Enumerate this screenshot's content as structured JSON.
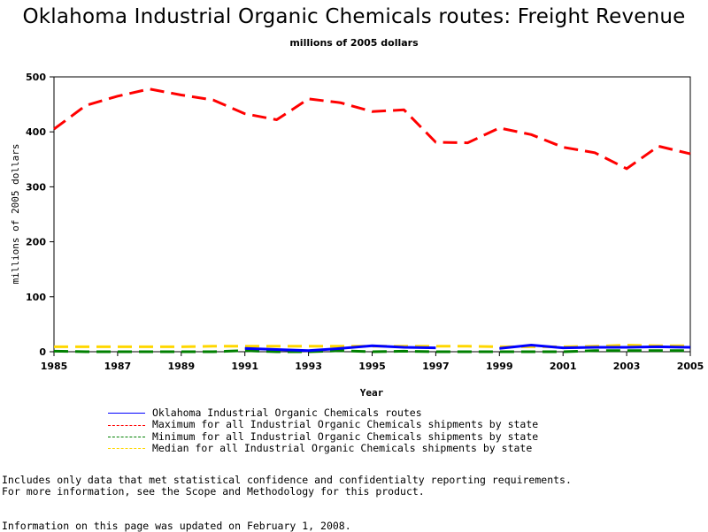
{
  "chart_data": {
    "type": "line",
    "title": "Oklahoma Industrial Organic Chemicals routes: Freight Revenue",
    "subtitle": "millions of 2005 dollars",
    "xlabel": "Year",
    "ylabel": "millions of 2005 dollars",
    "xlim": [
      1985,
      2005
    ],
    "ylim": [
      0,
      500
    ],
    "x_ticks": [
      "1985",
      "1987",
      "1989",
      "1991",
      "1993",
      "1995",
      "1997",
      "1999",
      "2001",
      "2003",
      "2005"
    ],
    "y_ticks": [
      "0",
      "100",
      "200",
      "300",
      "400",
      "500"
    ],
    "grid": false,
    "legend_position": "bottom",
    "series": [
      {
        "name": "Oklahoma Industrial Organic Chemicals routes",
        "color": "#0000ff",
        "dash": "solid",
        "x": [
          1991,
          1992,
          1993,
          1994,
          1995,
          1996,
          1997,
          1998,
          1999,
          2000,
          2001,
          2002,
          2003,
          2004,
          2005
        ],
        "y": [
          6,
          4,
          2,
          6,
          11,
          8,
          7,
          null,
          6,
          12,
          7,
          8,
          8,
          9,
          8
        ]
      },
      {
        "name": "Maximum for all Industrial Organic Chemicals shipments by state",
        "color": "#ff0000",
        "dash": "dashed",
        "x": [
          1985,
          1986,
          1987,
          1988,
          1989,
          1990,
          1991,
          1992,
          1993,
          1994,
          1995,
          1996,
          1997,
          1998,
          1999,
          2000,
          2001,
          2002,
          2003,
          2004,
          2005
        ],
        "y": [
          405,
          448,
          465,
          478,
          467,
          458,
          433,
          422,
          460,
          453,
          437,
          440,
          381,
          380,
          407,
          395,
          372,
          362,
          333,
          374,
          360
        ]
      },
      {
        "name": "Minimum for all Industrial Organic Chemicals shipments by state",
        "color": "#008000",
        "dash": "dashed",
        "x": [
          1985,
          1986,
          1987,
          1988,
          1989,
          1990,
          1991,
          1992,
          1993,
          1994,
          1995,
          1996,
          1997,
          1998,
          1999,
          2000,
          2001,
          2002,
          2003,
          2004,
          2005
        ],
        "y": [
          1,
          0,
          0,
          0,
          0,
          0,
          2,
          0,
          0,
          2,
          0,
          1,
          0,
          0,
          0,
          0,
          0,
          2,
          2,
          2,
          2
        ]
      },
      {
        "name": "Median for all Industrial Organic Chemicals shipments by state",
        "color": "#ffd700",
        "dash": "dashed",
        "x": [
          1985,
          1986,
          1987,
          1988,
          1989,
          1990,
          1991,
          1992,
          1993,
          1994,
          1995,
          1996,
          1997,
          1998,
          1999,
          2000,
          2001,
          2002,
          2003,
          2004,
          2005
        ],
        "y": [
          9,
          9,
          9,
          9,
          9,
          10,
          10,
          10,
          10,
          10,
          10,
          10,
          10,
          10,
          9,
          9,
          9,
          10,
          12,
          11,
          11
        ]
      }
    ]
  },
  "notes": {
    "line1": "Includes only data that met statistical confidence and confidentialty reporting requirements.",
    "line2": "For more information, see the Scope and Methodology for this product.",
    "updated": "Information on this page was updated on February 1, 2008."
  }
}
